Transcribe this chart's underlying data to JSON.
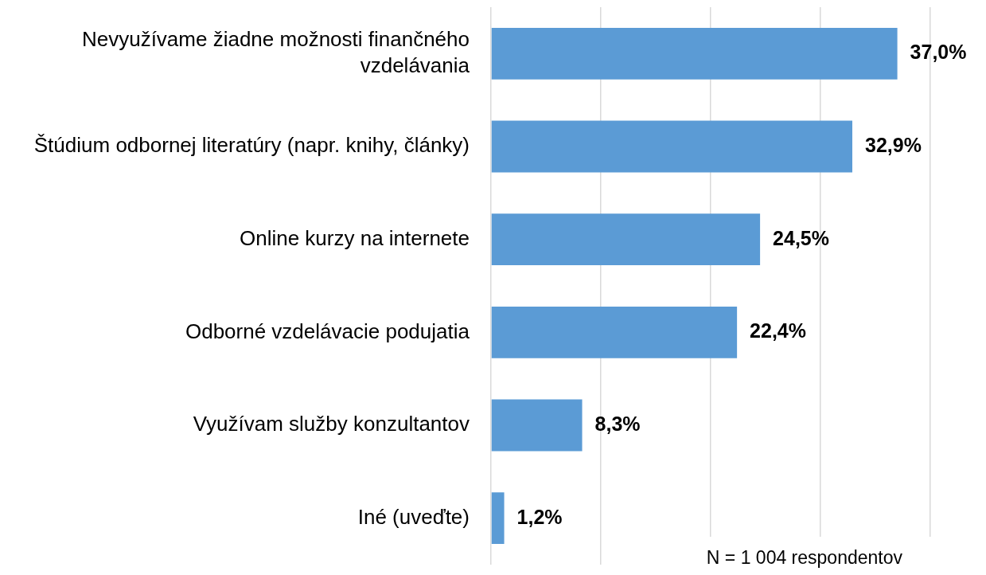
{
  "chart_data": {
    "type": "bar",
    "orientation": "horizontal",
    "categories": [
      "Nevyužívame žiadne možnosti finančného vzdelávania",
      "Štúdium odbornej literatúry (napr. knihy, články)",
      "Online kurzy na internete",
      "Odborné vzdelávacie podujatia",
      "Využívam služby konzultantov",
      "Iné (uveďte)"
    ],
    "values": [
      37.0,
      32.9,
      24.5,
      22.4,
      8.3,
      1.2
    ],
    "value_labels": [
      "37,0%",
      "32,9%",
      "24,5%",
      "22,4%",
      "8,3%",
      "1,2%"
    ],
    "color": "#5b9bd5",
    "xlim": [
      0,
      40
    ],
    "xticks": [
      {
        "value": 0,
        "label": null
      },
      {
        "value": 10,
        "label": null
      },
      {
        "value": 20,
        "label": null
      },
      {
        "value": 30,
        "label": null
      },
      {
        "value": 40,
        "label": null
      }
    ],
    "grid": "x",
    "tick_labels": "y",
    "annotations": [
      "N = 1 004 respondentov"
    ]
  }
}
